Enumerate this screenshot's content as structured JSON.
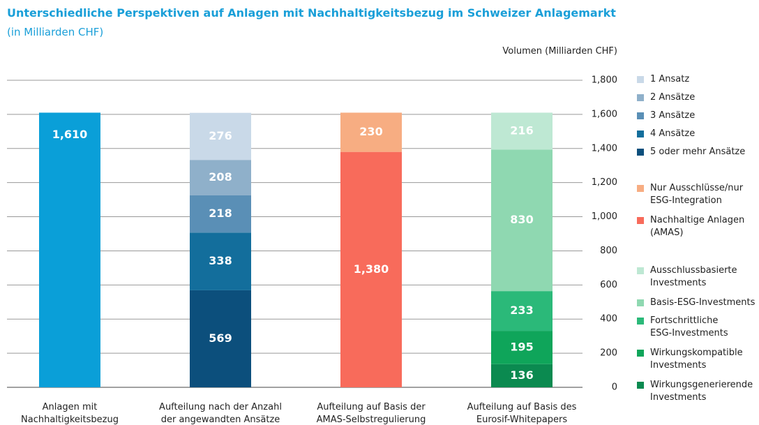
{
  "chart_data": {
    "type": "stacked_bar",
    "title": "Unterschiedliche Perspektiven auf Anlagen mit Nachhaltigkeitsbezug im Schweizer Anlagemarkt",
    "subtitle": "(in Milliarden CHF)",
    "y_axis_label": "Volumen (Milliarden CHF)",
    "categories": [
      "Anlagen mit\nNachhaltigkeitsbezug",
      "Aufteilung nach der Anzahl\nder angewandten Ansätze",
      "Aufteilung auf Basis der\nAMAS-Selbstregulierung",
      "Aufteilung auf Basis des\nEurosif-Whitepapers"
    ],
    "ylim": [
      0,
      1800
    ],
    "yticks": [
      0,
      200,
      400,
      600,
      800,
      {
        "value": 1000,
        "label": "1,000"
      },
      {
        "value": 1200,
        "label": "1,200"
      },
      {
        "value": 1400,
        "label": "1,400"
      },
      {
        "value": 1600,
        "label": "1,600"
      },
      {
        "value": 1800,
        "label": "1,800"
      }
    ],
    "grid": true,
    "axis_side": "right",
    "legend": "right",
    "series": [
      {
        "color": "#0a9fd8",
        "values": [
          1610,
          null,
          null,
          null
        ],
        "value_labels": [
          "1,610",
          null,
          null,
          null
        ]
      },
      {
        "name": "1 Ansatz",
        "color": "#c9d9e8",
        "values": [
          null,
          276,
          null,
          null
        ]
      },
      {
        "name": "2 Ansätze",
        "color": "#8fb0ca",
        "values": [
          null,
          208,
          null,
          null
        ]
      },
      {
        "name": "3 Ansätze",
        "color": "#5a8fb6",
        "values": [
          null,
          218,
          null,
          null
        ]
      },
      {
        "name": "4 Ansätze",
        "color": "#136e9c",
        "values": [
          null,
          338,
          null,
          null
        ]
      },
      {
        "name": "5 oder mehr Ansätze",
        "color": "#0c4f7c",
        "values": [
          null,
          569,
          null,
          null
        ]
      },
      {
        "name": "Nur Ausschlüsse/nur\nESG-Integration",
        "color": "#f7ad82",
        "values": [
          null,
          null,
          230,
          null
        ]
      },
      {
        "name": "Nachhaltige Anlagen\n(AMAS)",
        "color": "#f86b5b",
        "values": [
          null,
          null,
          1380,
          null
        ],
        "value_labels": [
          null,
          null,
          "1,380",
          null
        ]
      },
      {
        "name": "Ausschlussbasierte\nInvestments",
        "color": "#bee8d3",
        "values": [
          null,
          null,
          null,
          216
        ]
      },
      {
        "name": "Basis-ESG-Investments",
        "color": "#8fd8b1",
        "values": [
          null,
          null,
          null,
          830
        ]
      },
      {
        "name": "Fortschrittliche\nESG-Investments",
        "color": "#2bb979",
        "values": [
          null,
          null,
          null,
          233
        ]
      },
      {
        "name": "Wirkungskompatible\nInvestments",
        "color": "#0fa55a",
        "values": [
          null,
          null,
          null,
          195
        ]
      },
      {
        "name": "Wirkungsgenerierende\nInvestments",
        "color": "#0b8a50",
        "values": [
          null,
          null,
          null,
          136
        ]
      }
    ]
  }
}
